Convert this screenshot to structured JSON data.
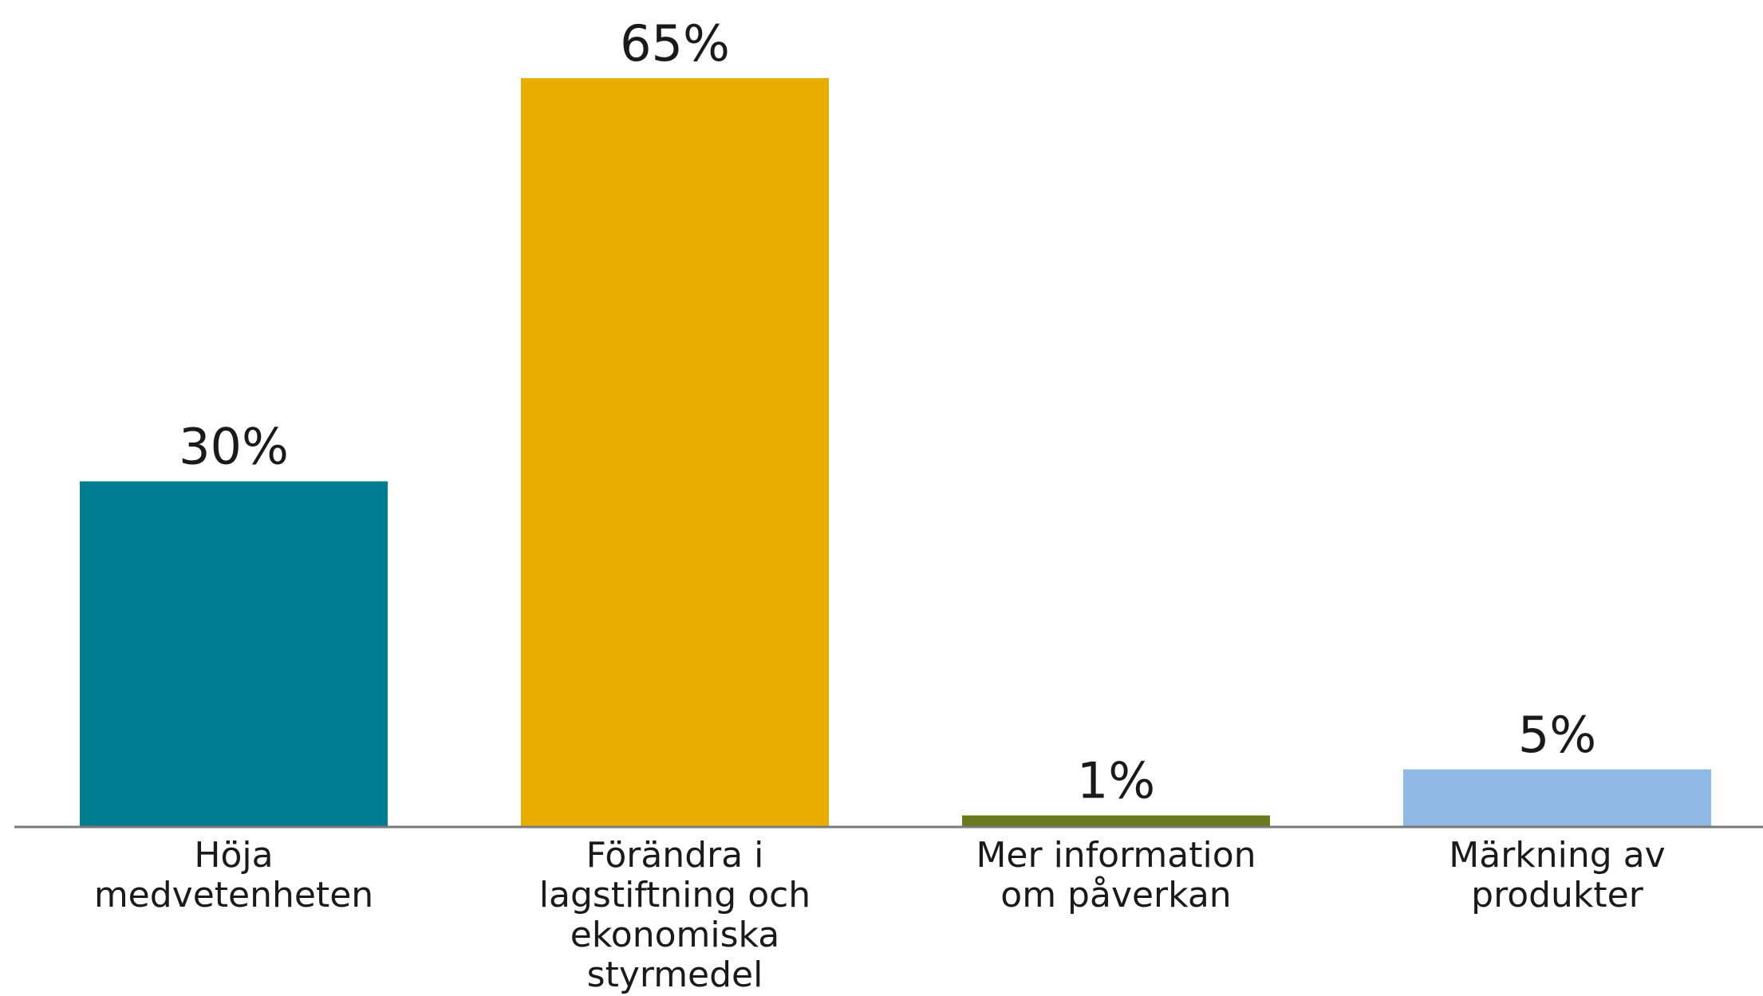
{
  "chart_data": {
    "type": "bar",
    "title": "",
    "xlabel": "",
    "ylabel": "",
    "ylim": [
      0,
      65
    ],
    "grid": false,
    "legend": "none",
    "categories": [
      "Höja medvetenheten",
      "Förändra i lagstiftning och ekonomiska styrmedel",
      "Mer information om påverkan",
      "Märkning av produkter"
    ],
    "category_lines": [
      [
        "Höja",
        "medvetenheten"
      ],
      [
        "Förändra i",
        "lagstiftning och",
        "ekonomiska",
        "styrmedel"
      ],
      [
        "Mer information",
        "om påverkan"
      ],
      [
        "Märkning av",
        "produkter"
      ]
    ],
    "values": [
      30,
      65,
      1,
      5
    ],
    "value_labels": [
      "30%",
      "65%",
      "1%",
      "5%"
    ],
    "colors": [
      "#007c91",
      "#e8ad00",
      "#6b7a1f",
      "#8fb8e4"
    ]
  }
}
